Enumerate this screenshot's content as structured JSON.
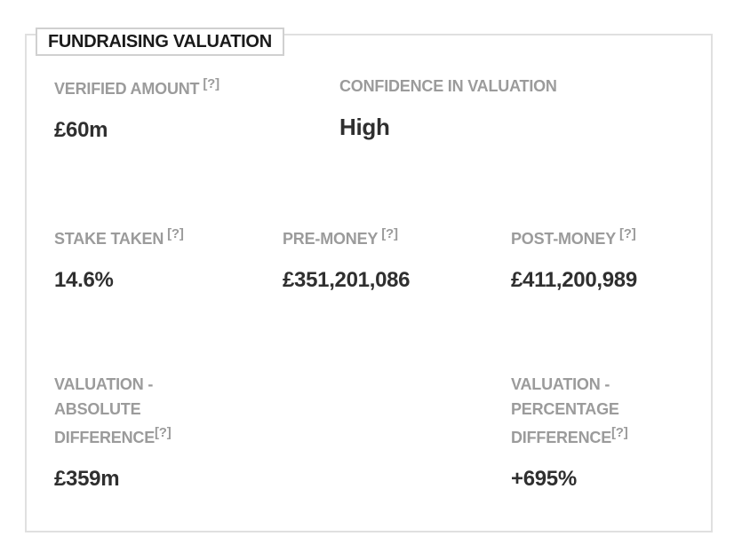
{
  "panel": {
    "title": "FUNDRAISING VALUATION"
  },
  "help_marker": "[?]",
  "fields": {
    "verified_amount": {
      "label": "VERIFIED AMOUNT",
      "value": "£60m"
    },
    "confidence": {
      "label": "CONFIDENCE IN VALUATION",
      "value": "High"
    },
    "stake_taken": {
      "label": "STAKE TAKEN",
      "value": "14.6%"
    },
    "pre_money": {
      "label": "PRE-MONEY",
      "value": "£351,201,086"
    },
    "post_money": {
      "label": "POST-MONEY",
      "value": "£411,200,989"
    },
    "absolute_difference": {
      "label_lines": [
        "VALUATION -",
        "ABSOLUTE",
        "DIFFERENCE"
      ],
      "value": "£359m"
    },
    "percentage_difference": {
      "label_lines": [
        "VALUATION -",
        "PERCENTAGE",
        "DIFFERENCE"
      ],
      "value": "+695%"
    }
  }
}
